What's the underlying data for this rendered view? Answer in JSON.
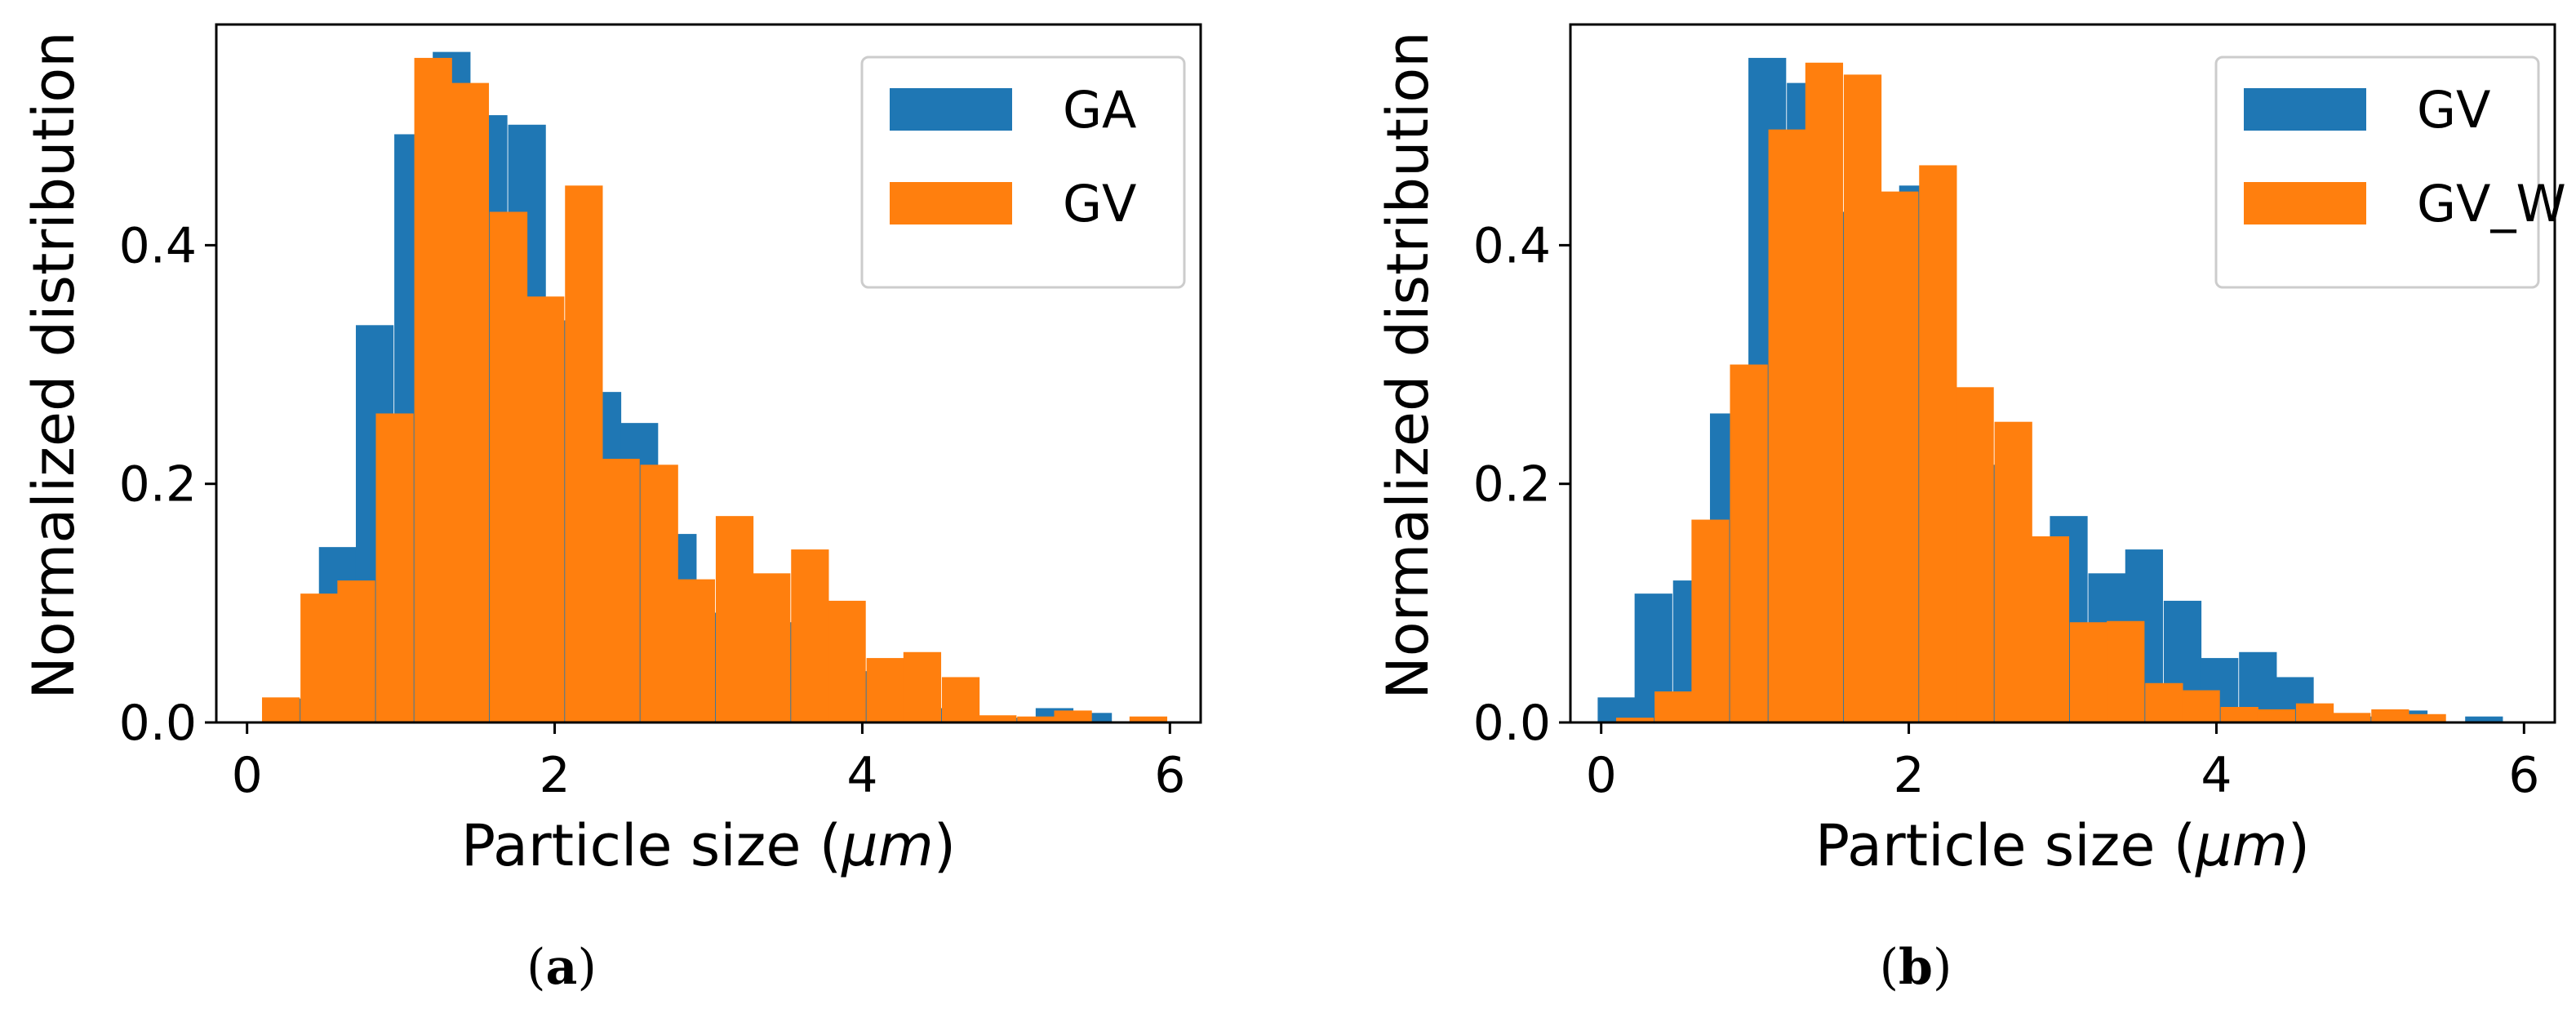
{
  "colors": {
    "blue": "#1f77b4",
    "orange": "#ff7f0e",
    "axis": "#000000",
    "legend_border": "#cccccc"
  },
  "chart_data": [
    {
      "type": "bar",
      "panel_label": "a",
      "xlabel_prefix": "Particle size (",
      "xlabel_unit": "μm",
      "xlabel_suffix": ")",
      "ylabel": "Normalized distribution",
      "xlim": [
        -0.2,
        6.2
      ],
      "ylim": [
        0,
        0.585
      ],
      "xticks": [
        0,
        2,
        4,
        6
      ],
      "yticks": [
        0.0,
        0.2,
        0.4
      ],
      "ytick_labels": [
        "0.0",
        "0.2",
        "0.4"
      ],
      "bin_width": 0.2454,
      "legend_position": "top-right",
      "series": [
        {
          "name": "GA",
          "color": "#1f77b4",
          "x": [
            0.34,
            0.59,
            0.83,
            1.08,
            1.33,
            1.57,
            1.82,
            2.06,
            2.31,
            2.55,
            2.8,
            3.04,
            3.29,
            3.53,
            3.78,
            4.02,
            4.27,
            4.51,
            4.76,
            5.01,
            5.25,
            5.5,
            5.74
          ],
          "values": [
            0.02,
            0.147,
            0.333,
            0.493,
            0.562,
            0.509,
            0.501,
            0.337,
            0.277,
            0.251,
            0.158,
            0.092,
            0.1,
            0.084,
            0.046,
            0.043,
            0.008,
            0.012,
            0.004,
            0.004,
            0.012,
            0.008,
            0.0
          ]
        },
        {
          "name": "GV",
          "color": "#ff7f0e",
          "x": [
            0.22,
            0.47,
            0.71,
            0.96,
            1.21,
            1.45,
            1.7,
            1.94,
            2.19,
            2.43,
            2.68,
            2.92,
            3.17,
            3.41,
            3.66,
            3.9,
            4.15,
            4.39,
            4.64,
            4.88,
            5.13,
            5.37,
            5.62,
            5.86
          ],
          "values": [
            0.021,
            0.108,
            0.119,
            0.259,
            0.557,
            0.536,
            0.428,
            0.357,
            0.45,
            0.221,
            0.216,
            0.12,
            0.173,
            0.125,
            0.145,
            0.102,
            0.054,
            0.059,
            0.038,
            0.006,
            0.005,
            0.01,
            0.0,
            0.005
          ]
        }
      ]
    },
    {
      "type": "bar",
      "panel_label": "b",
      "xlabel_prefix": "Particle size (",
      "xlabel_unit": "μm",
      "xlabel_suffix": ")",
      "ylabel": "Normalized distribution",
      "xlim": [
        -0.2,
        6.2
      ],
      "ylim": [
        0,
        0.585
      ],
      "xticks": [
        0,
        2,
        4,
        6
      ],
      "yticks": [
        0.0,
        0.2,
        0.4
      ],
      "ytick_labels": [
        "0.0",
        "0.2",
        "0.4"
      ],
      "bin_width": 0.2454,
      "legend_position": "top-right",
      "series": [
        {
          "name": "GV",
          "color": "#1f77b4",
          "x": [
            0.1,
            0.34,
            0.59,
            0.83,
            1.08,
            1.33,
            1.57,
            1.82,
            2.06,
            2.31,
            2.55,
            2.8,
            3.04,
            3.29,
            3.53,
            3.78,
            4.02,
            4.27,
            4.51,
            4.76,
            5.01,
            5.25,
            5.5,
            5.74
          ],
          "values": [
            0.021,
            0.108,
            0.119,
            0.259,
            0.557,
            0.536,
            0.428,
            0.357,
            0.45,
            0.221,
            0.216,
            0.12,
            0.173,
            0.125,
            0.145,
            0.102,
            0.054,
            0.059,
            0.038,
            0.006,
            0.005,
            0.01,
            0.0,
            0.005
          ]
        },
        {
          "name": "GV_W",
          "color": "#ff7f0e",
          "x": [
            0.22,
            0.47,
            0.71,
            0.96,
            1.21,
            1.45,
            1.7,
            1.94,
            2.19,
            2.43,
            2.68,
            2.92,
            3.17,
            3.41,
            3.66,
            3.9,
            4.15,
            4.39,
            4.64,
            4.88,
            5.13,
            5.37,
            5.62,
            5.86
          ],
          "values": [
            0.004,
            0.026,
            0.17,
            0.3,
            0.497,
            0.553,
            0.543,
            0.445,
            0.467,
            0.281,
            0.252,
            0.156,
            0.084,
            0.085,
            0.033,
            0.027,
            0.013,
            0.011,
            0.016,
            0.008,
            0.011,
            0.007,
            0.0,
            0.0
          ]
        }
      ]
    }
  ]
}
